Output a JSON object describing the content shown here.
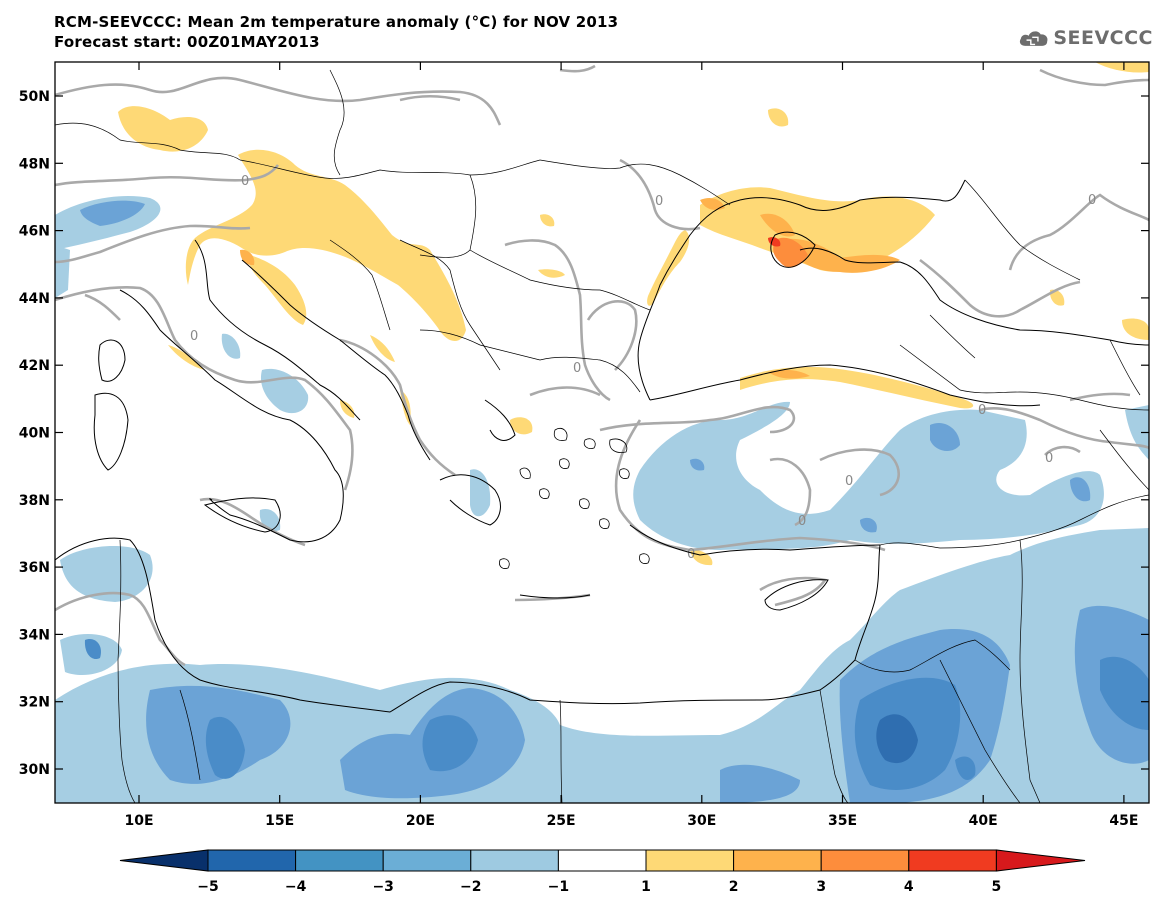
{
  "title_line1": "RCM-SEEVCCC: Mean 2m temperature anomaly (°C) for NOV 2013",
  "title_line2": "Forecast start: 00Z01MAY2013",
  "logo_text": "SEEVCCC",
  "contour_label": "0",
  "lat_labels": [
    "50N",
    "48N",
    "46N",
    "44N",
    "42N",
    "40N",
    "38N",
    "36N",
    "34N",
    "32N",
    "30N"
  ],
  "lon_labels": [
    "10E",
    "15E",
    "20E",
    "25E",
    "30E",
    "35E",
    "40E",
    "45E"
  ],
  "colorbar": {
    "ticks": [
      "−5",
      "−4",
      "−3",
      "−2",
      "−1",
      "1",
      "2",
      "3",
      "4",
      "5"
    ],
    "colors": [
      "#08306b",
      "#2166ac",
      "#4393c3",
      "#6baed6",
      "#9ecae1",
      "#ffffff",
      "#fed976",
      "#feb24c",
      "#fd8d3c",
      "#f03b20",
      "#d7191c"
    ]
  },
  "colors": {
    "cold_1": "#a6cee3",
    "cold_2": "#6ba3d6",
    "cold_3": "#4a8cc8",
    "cold_4": "#2f6eb0",
    "warm_1": "#fed976",
    "warm_2": "#feb24c",
    "warm_3": "#fd8d3c",
    "warm_4": "#f03b20",
    "contour": "#a9a9a9"
  }
}
